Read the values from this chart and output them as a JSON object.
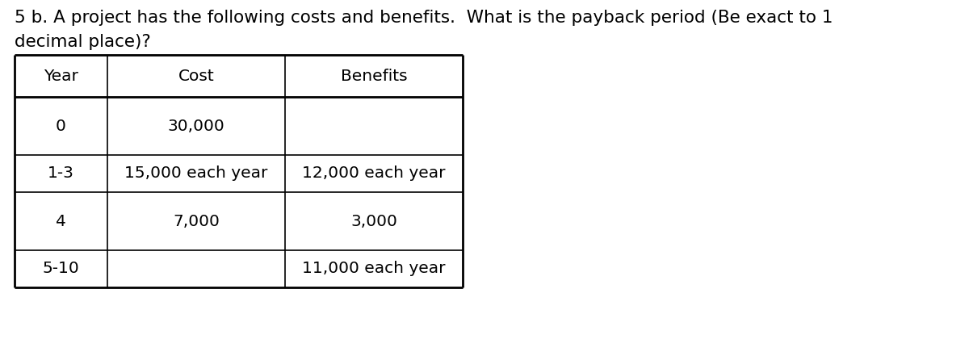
{
  "title_line1": "5 b. A project has the following costs and benefits.  What is the payback period (Be exact to 1",
  "title_line2": "decimal place)?",
  "col_headers": [
    "Year",
    "Cost",
    "Benefits"
  ],
  "rows": [
    [
      "0",
      "30,000",
      ""
    ],
    [
      "1-3",
      "15,000 each year",
      "12,000 each year"
    ],
    [
      "4",
      "7,000",
      "3,000"
    ],
    [
      "5-10",
      "",
      "11,000 each year"
    ]
  ],
  "background_color": "#ffffff",
  "text_color": "#000000",
  "font_size_title": 15.5,
  "font_size_table": 14.5,
  "font_family": "DejaVu Sans"
}
